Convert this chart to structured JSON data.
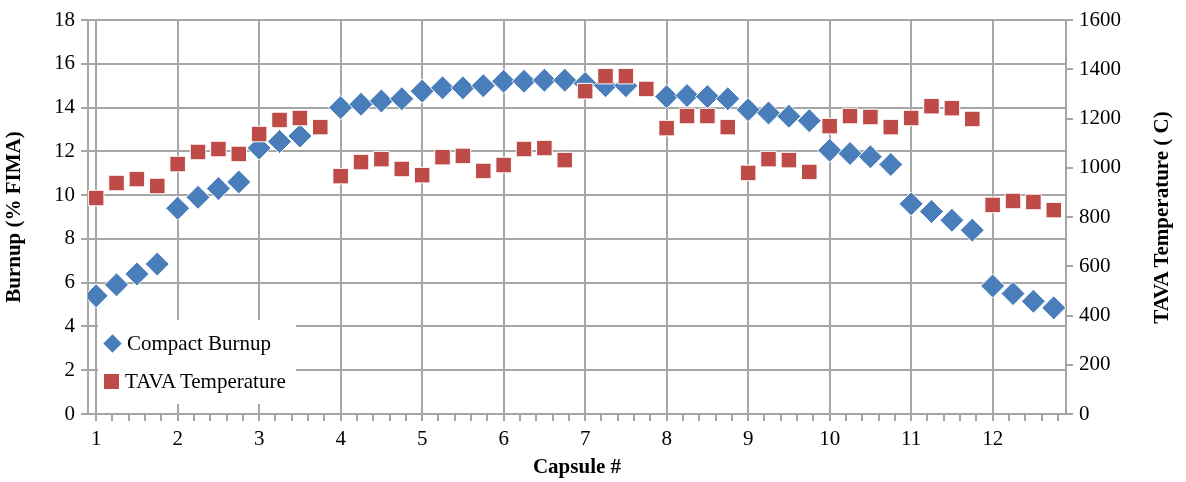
{
  "chart_data": {
    "type": "scatter",
    "xlabel": "Capsule #",
    "ylabel": "Burnup (% FIMA)",
    "y2label": "TAVA Temperature ( C)",
    "x": [
      1,
      1.25,
      1.5,
      1.75,
      2,
      2.25,
      2.5,
      2.75,
      3,
      3.25,
      3.5,
      3.75,
      4,
      4.25,
      4.5,
      4.75,
      5,
      5.25,
      5.5,
      5.75,
      6,
      6.25,
      6.5,
      6.75,
      7,
      7.25,
      7.5,
      7.75,
      8,
      8.25,
      8.5,
      8.75,
      9,
      9.25,
      9.5,
      9.75,
      10,
      10.25,
      10.5,
      10.75,
      11,
      11.25,
      11.5,
      11.75,
      12,
      12.25,
      12.5,
      12.75
    ],
    "series": [
      {
        "name": "Compact Burnup",
        "color": "#4a7ebb",
        "marker": "diamond",
        "values": [
          5.4,
          5.9,
          6.4,
          6.85,
          9.4,
          9.9,
          10.3,
          10.6,
          12.15,
          12.45,
          12.7,
          null,
          14.0,
          14.15,
          14.3,
          14.4,
          14.75,
          14.9,
          14.9,
          15.0,
          15.2,
          15.2,
          15.25,
          15.25,
          15.1,
          15.0,
          15.0,
          null,
          14.5,
          14.55,
          14.5,
          14.4,
          13.9,
          13.75,
          13.6,
          13.4,
          12.05,
          11.9,
          11.75,
          11.4,
          9.6,
          9.25,
          8.85,
          8.4,
          5.85,
          5.5,
          5.15,
          4.85
        ]
      },
      {
        "name": "TAVA Temperature",
        "color": "#be4b48",
        "marker": "square",
        "axis": "y2",
        "values": [
          877,
          938,
          954,
          926,
          1015,
          1064,
          1076,
          1056,
          1137,
          1194,
          1202,
          1165,
          966,
          1023,
          1035,
          995,
          970,
          1043,
          1048,
          987,
          1011,
          1076,
          1080,
          1031,
          1311,
          1372,
          1372,
          1320,
          1161,
          1210,
          1210,
          1165,
          979,
          1035,
          1031,
          983,
          1169,
          1210,
          1206,
          1165,
          1202,
          1250,
          1242,
          1198,
          849,
          865,
          861,
          828
        ]
      }
    ],
    "xlim": [
      0.9,
      12.9
    ],
    "xticks": [
      1,
      {
        "value": 1.2,
        "label": null
      },
      {
        "value": 1.4,
        "label": null
      },
      {
        "value": 1.6,
        "label": null
      },
      {
        "value": 1.8,
        "label": null
      },
      2,
      {
        "value": 2.2,
        "label": null
      },
      {
        "value": 2.4,
        "label": null
      },
      {
        "value": 2.6,
        "label": null
      },
      {
        "value": 2.8,
        "label": null
      },
      3,
      {
        "value": 3.2,
        "label": null
      },
      {
        "value": 3.4,
        "label": null
      },
      {
        "value": 3.6,
        "label": null
      },
      {
        "value": 3.8,
        "label": null
      },
      4,
      {
        "value": 4.2,
        "label": null
      },
      {
        "value": 4.4,
        "label": null
      },
      {
        "value": 4.6,
        "label": null
      },
      {
        "value": 4.8,
        "label": null
      },
      5,
      {
        "value": 5.2,
        "label": null
      },
      {
        "value": 5.4,
        "label": null
      },
      {
        "value": 5.6,
        "label": null
      },
      {
        "value": 5.8,
        "label": null
      },
      6,
      {
        "value": 6.2,
        "label": null
      },
      {
        "value": 6.4,
        "label": null
      },
      {
        "value": 6.6,
        "label": null
      },
      {
        "value": 6.8,
        "label": null
      },
      7,
      {
        "value": 7.2,
        "label": null
      },
      {
        "value": 7.4,
        "label": null
      },
      {
        "value": 7.6,
        "label": null
      },
      {
        "value": 7.8,
        "label": null
      },
      8,
      {
        "value": 8.2,
        "label": null
      },
      {
        "value": 8.4,
        "label": null
      },
      {
        "value": 8.6,
        "label": null
      },
      {
        "value": 8.8,
        "label": null
      },
      9,
      {
        "value": 9.2,
        "label": null
      },
      {
        "value": 9.4,
        "label": null
      },
      {
        "value": 9.6,
        "label": null
      },
      {
        "value": 9.8,
        "label": null
      },
      10,
      {
        "value": 10.2,
        "label": null
      },
      {
        "value": 10.4,
        "label": null
      },
      {
        "value": 10.6,
        "label": null
      },
      {
        "value": 10.8,
        "label": null
      },
      11,
      {
        "value": 11.2,
        "label": null
      },
      {
        "value": 11.4,
        "label": null
      },
      {
        "value": 11.6,
        "label": null
      },
      {
        "value": 11.8,
        "label": null
      },
      12,
      {
        "value": 12.2,
        "label": null
      },
      {
        "value": 12.4,
        "label": null
      },
      {
        "value": 12.6,
        "label": null
      },
      {
        "value": 12.8,
        "label": null
      }
    ],
    "ylim": [
      0,
      18
    ],
    "yticks": [
      0,
      2,
      4,
      6,
      8,
      10,
      12,
      14,
      16,
      18
    ],
    "y2lim": [
      0,
      1600
    ],
    "y2ticks": [
      0,
      200,
      400,
      600,
      800,
      1000,
      1200,
      1400,
      1600
    ],
    "grid": true,
    "legend": "bottom left"
  }
}
